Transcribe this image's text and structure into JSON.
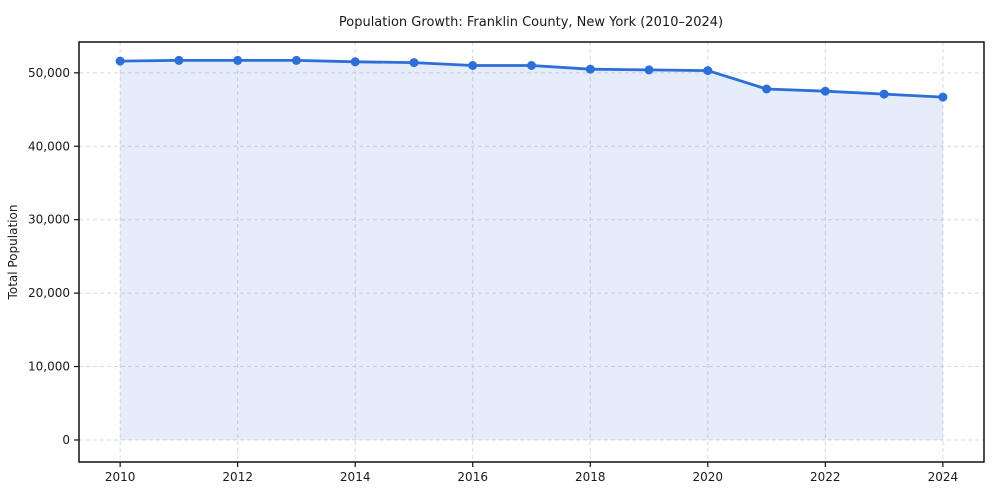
{
  "chart_data": {
    "type": "area",
    "title": "Population Growth: Franklin County, New York (2010–2024)",
    "xlabel": "",
    "ylabel": "Total Population",
    "series_name": "Total Population",
    "x": [
      2010,
      2011,
      2012,
      2013,
      2014,
      2015,
      2016,
      2017,
      2018,
      2019,
      2020,
      2021,
      2022,
      2023,
      2024
    ],
    "values": [
      51600,
      51700,
      51700,
      51700,
      51500,
      51400,
      51000,
      51000,
      50500,
      50400,
      50300,
      47800,
      47500,
      47100,
      46700
    ],
    "xticks": [
      2010,
      2012,
      2014,
      2016,
      2018,
      2020,
      2022,
      2024
    ],
    "yticks": [
      0,
      10000,
      20000,
      30000,
      40000,
      50000
    ],
    "ytick_labels": [
      "0",
      "10,000",
      "20,000",
      "30,000",
      "40,000",
      "50,000"
    ],
    "xlim": [
      2009.3,
      2024.7
    ],
    "ylim": [
      -3000,
      54200
    ],
    "grid": true,
    "grid_style": "dashed",
    "legend": false,
    "marker": "circle",
    "colors": {
      "line": "#2d6ed8",
      "marker": "#2d6ed8",
      "fill": "#2d6ed8",
      "fill_opacity": 0.12,
      "grid": "#d9d9d9",
      "axis": "#111111",
      "text": "#1a1a1a",
      "background": "#ffffff"
    }
  }
}
